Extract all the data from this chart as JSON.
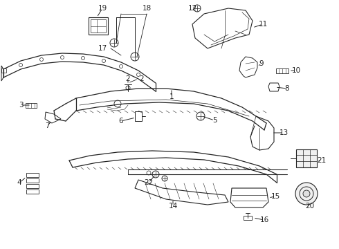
{
  "bg_color": "#ffffff",
  "lc": "#222222",
  "label_fs": 7.5,
  "fig_w": 4.9,
  "fig_h": 3.6,
  "dpi": 100
}
